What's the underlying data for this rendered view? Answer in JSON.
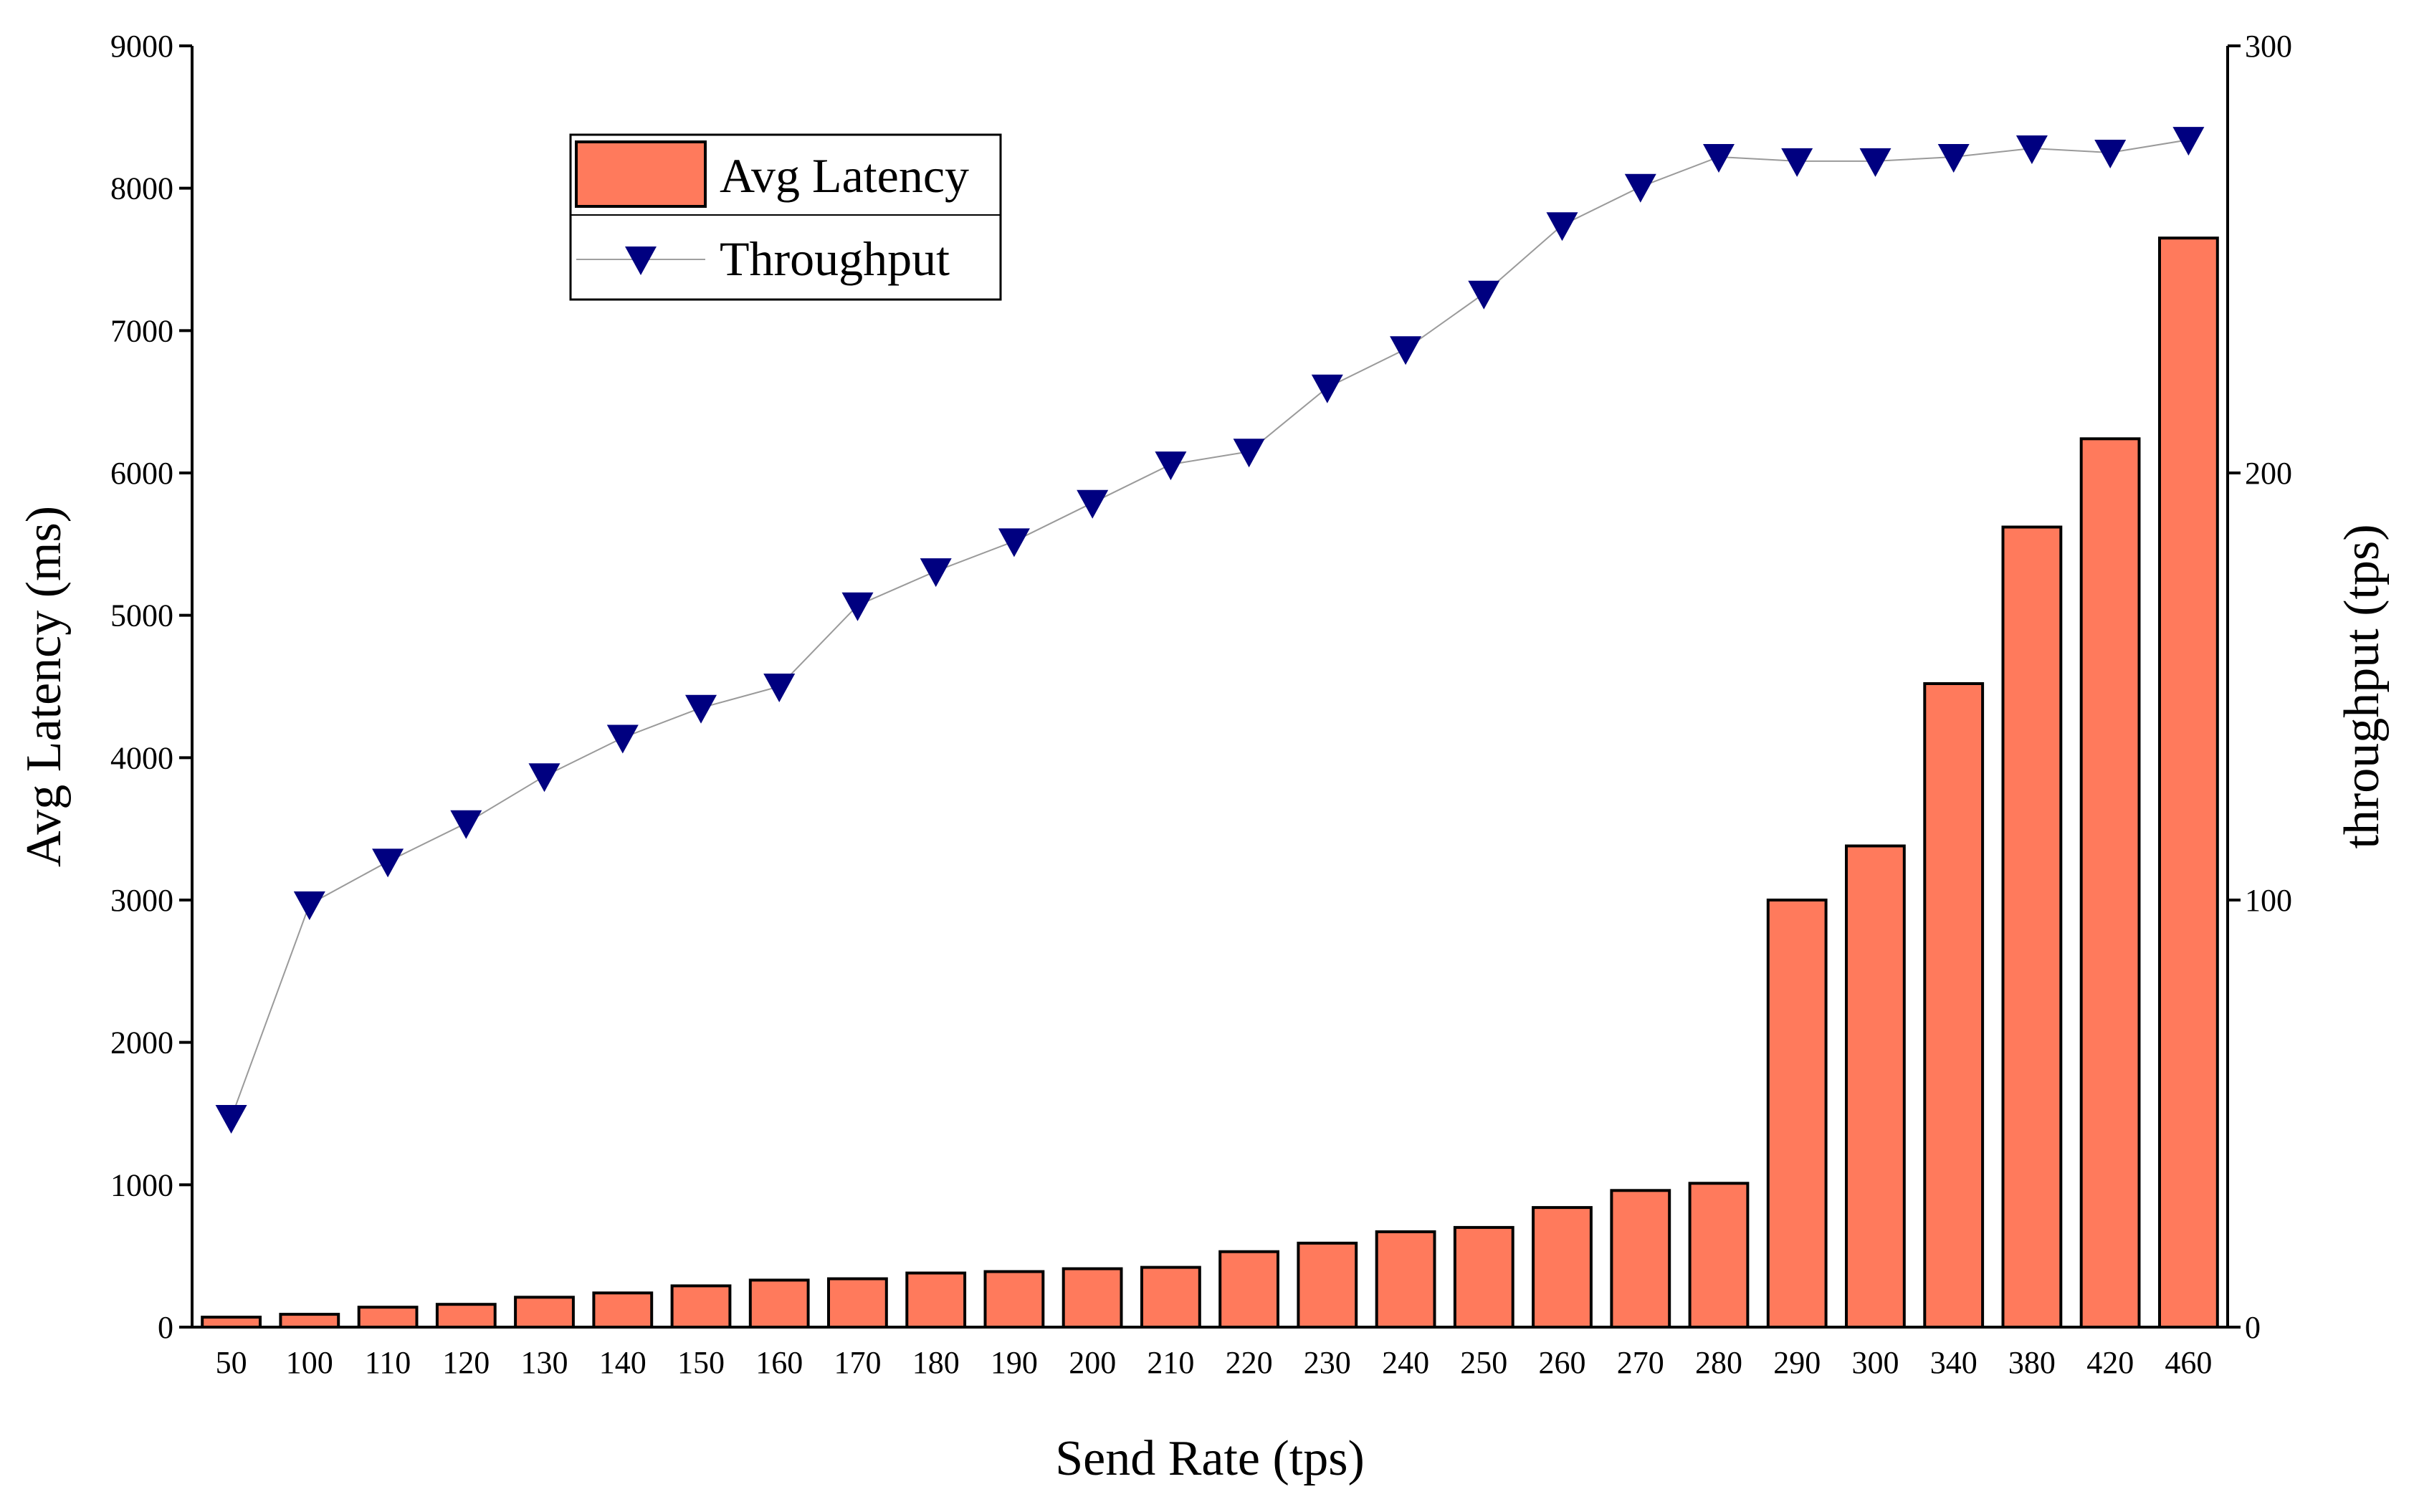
{
  "chart_data": {
    "type": "bar",
    "categories": [
      "50",
      "100",
      "110",
      "120",
      "130",
      "140",
      "150",
      "160",
      "170",
      "180",
      "190",
      "200",
      "210",
      "220",
      "230",
      "240",
      "250",
      "260",
      "270",
      "280",
      "290",
      "300",
      "340",
      "380",
      "420",
      "460"
    ],
    "series": [
      {
        "name": "Avg Latency",
        "type": "bar",
        "axis": "left",
        "color": "#ff7a5c",
        "values": [
          70,
          90,
          140,
          160,
          210,
          240,
          290,
          330,
          340,
          380,
          390,
          410,
          420,
          530,
          590,
          670,
          700,
          840,
          960,
          1010,
          3000,
          3380,
          4520,
          5620,
          6240,
          7650
        ]
      },
      {
        "name": "Throughput",
        "type": "line",
        "axis": "right",
        "color": "#000080",
        "marker": "down-triangle",
        "values": [
          49,
          99,
          109,
          118,
          129,
          138,
          145,
          150,
          169,
          177,
          184,
          193,
          202,
          205,
          220,
          229,
          242,
          258,
          267,
          274,
          273,
          273,
          274,
          276,
          275,
          278
        ]
      }
    ],
    "xlabel": "Send Rate (tps)",
    "ylabel": "Avg Latency (ms)",
    "y2label": "throughput (tps)",
    "ylim": [
      0,
      9000
    ],
    "y2lim": [
      0,
      300
    ],
    "yticks": [
      "0",
      "1000",
      "2000",
      "3000",
      "4000",
      "5000",
      "6000",
      "7000",
      "8000",
      "9000"
    ],
    "y2ticks": [
      "0",
      "100",
      "200",
      "300"
    ],
    "legend": {
      "position": "top-left",
      "entries": [
        "Avg Latency",
        "Throughput"
      ]
    },
    "grid": false
  }
}
